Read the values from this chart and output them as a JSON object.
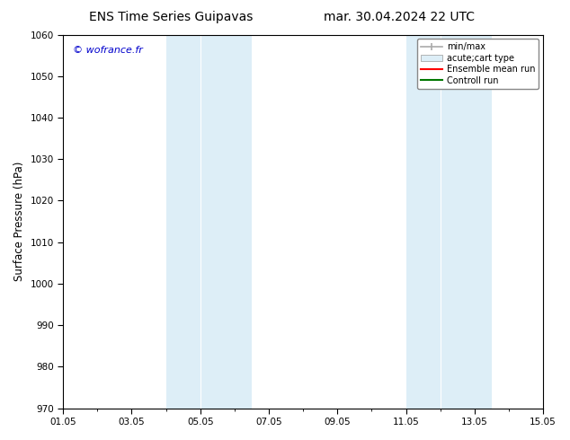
{
  "title_left": "ENS Time Series Guipavas",
  "title_right": "mar. 30.04.2024 22 UTC",
  "ylabel": "Surface Pressure (hPa)",
  "ylim": [
    970,
    1060
  ],
  "yticks": [
    970,
    980,
    990,
    1000,
    1010,
    1020,
    1030,
    1040,
    1050,
    1060
  ],
  "xlim_num": [
    0,
    14
  ],
  "xtick_labels": [
    "01.05",
    "03.05",
    "05.05",
    "07.05",
    "09.05",
    "11.05",
    "13.05",
    "15.05"
  ],
  "xtick_positions": [
    0,
    2,
    4,
    6,
    8,
    10,
    12,
    14
  ],
  "shade_bands": [
    {
      "xmin": 3.0,
      "xmax": 4.0,
      "color": "#ddeef7"
    },
    {
      "xmin": 4.0,
      "xmax": 5.5,
      "color": "#ddeef7"
    },
    {
      "xmin": 10.0,
      "xmax": 11.0,
      "color": "#ddeef7"
    },
    {
      "xmin": 11.0,
      "xmax": 12.5,
      "color": "#ddeef7"
    }
  ],
  "watermark_text": "© wofrance.fr",
  "watermark_color": "#0000cc",
  "bg_color": "#ffffff",
  "plot_bg_color": "#ffffff",
  "band_color": "#ddeef7",
  "legend_items": [
    {
      "label": "min/max",
      "color": "#aaaaaa",
      "style": "minmax"
    },
    {
      "label": "acute;cart type",
      "color": "#ddeef7",
      "style": "box"
    },
    {
      "label": "Ensemble mean run",
      "color": "#ff0000",
      "style": "line"
    },
    {
      "label": "Controll run",
      "color": "#007700",
      "style": "line"
    }
  ],
  "tick_label_fontsize": 7.5,
  "axis_label_fontsize": 8.5,
  "title_fontsize": 10,
  "watermark_fontsize": 8
}
